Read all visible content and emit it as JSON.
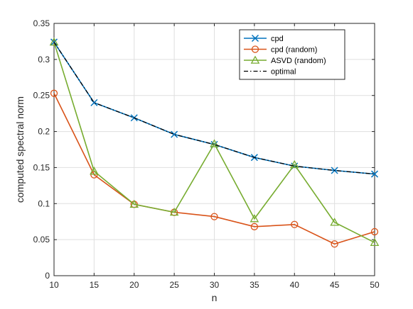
{
  "chart_data": {
    "type": "line",
    "xlabel": "n",
    "ylabel": "computed spectral norm",
    "xlim": [
      10,
      50
    ],
    "ylim": [
      0,
      0.35
    ],
    "xticks": [
      "10",
      "15",
      "20",
      "25",
      "30",
      "35",
      "40",
      "45",
      "50"
    ],
    "yticks": [
      "0",
      "0.05",
      "0.1",
      "0.15",
      "0.2",
      "0.25",
      "0.3",
      "0.35"
    ],
    "grid": true,
    "legend_position": "top-right",
    "x": [
      10,
      15,
      20,
      25,
      30,
      35,
      40,
      45,
      50
    ],
    "series": [
      {
        "name": "cpd",
        "color": "#0072BD",
        "marker": "x",
        "style": "solid",
        "values": [
          0.324,
          0.24,
          0.219,
          0.196,
          0.182,
          0.164,
          0.152,
          0.146,
          0.141
        ]
      },
      {
        "name": "cpd (random)",
        "color": "#D95319",
        "marker": "o",
        "style": "solid",
        "values": [
          0.253,
          0.14,
          0.099,
          0.088,
          0.082,
          0.068,
          0.071,
          0.044,
          0.061
        ]
      },
      {
        "name": "ASVD (random)",
        "color": "#77AC30",
        "marker": "triangle",
        "style": "solid",
        "values": [
          0.324,
          0.145,
          0.099,
          0.088,
          0.183,
          0.079,
          0.154,
          0.074,
          0.046
        ]
      },
      {
        "name": "optimal",
        "color": "#000000",
        "marker": "none",
        "style": "dashdot",
        "values": [
          0.324,
          0.24,
          0.219,
          0.196,
          0.182,
          0.164,
          0.152,
          0.146,
          0.141
        ]
      }
    ]
  }
}
